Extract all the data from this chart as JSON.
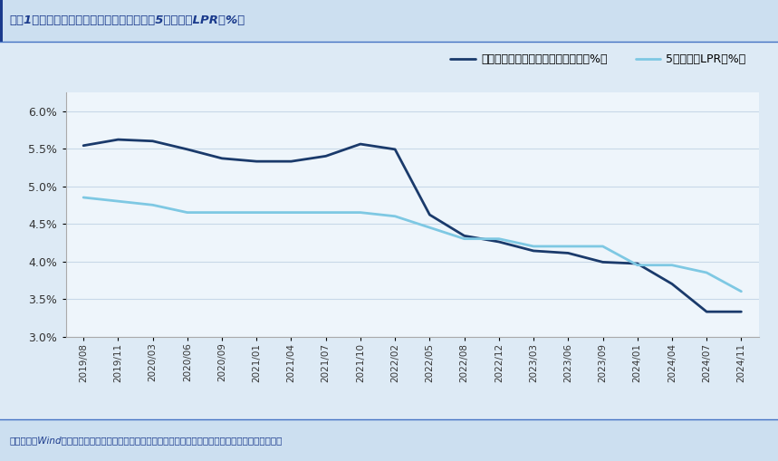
{
  "title": "图表1：新发放个人住房贷款加权平均利率与5年期以上LPR（%）",
  "footnote": "资料来源：Wind，央行，国盛证券研究所（个人住房贷款加权平均利率来自央行季度货币政策执行报告）",
  "legend1": "新发放个人住房贷款加权平均利率（%）",
  "legend2": "5年期以上LPR（%）",
  "color1": "#1a3a6b",
  "color2": "#7ec8e3",
  "bg_color": "#ddeaf5",
  "plot_bg": "#eef5fb",
  "title_bg": "#ccdff0",
  "foot_bg": "#ccdff0",
  "title_color": "#1a3a8c",
  "footnote_color": "#1a3a8c",
  "grid_color": "#c8d8e8",
  "spine_color": "#aaaaaa",
  "ylim": [
    3.0,
    6.25
  ],
  "yticks": [
    3.0,
    3.5,
    4.0,
    4.5,
    5.0,
    5.5,
    6.0
  ],
  "xtick_labels": [
    "2019/08",
    "2019/11",
    "2020/03",
    "2020/06",
    "2020/09",
    "2021/01",
    "2021/04",
    "2021/07",
    "2021/10",
    "2022/02",
    "2022/05",
    "2022/08",
    "2022/12",
    "2023/03",
    "2023/06",
    "2023/09",
    "2024/01",
    "2024/04",
    "2024/07",
    "2024/11"
  ],
  "series1_x": [
    0,
    1,
    2,
    3,
    4,
    5,
    6,
    7,
    8,
    9,
    10,
    11,
    12,
    13,
    14,
    15,
    16,
    17,
    18,
    19
  ],
  "series1_y": [
    5.54,
    5.62,
    5.6,
    5.49,
    5.37,
    5.33,
    5.33,
    5.4,
    5.56,
    5.49,
    4.62,
    4.34,
    4.26,
    4.14,
    4.11,
    3.99,
    3.97,
    3.7,
    3.33,
    3.33
  ],
  "series2_x": [
    0,
    1,
    2,
    3,
    4,
    5,
    6,
    7,
    8,
    9,
    10,
    11,
    12,
    13,
    14,
    15,
    16,
    17,
    18,
    19
  ],
  "series2_y": [
    4.85,
    4.8,
    4.75,
    4.65,
    4.65,
    4.65,
    4.65,
    4.65,
    4.65,
    4.6,
    4.45,
    4.3,
    4.3,
    4.2,
    4.2,
    4.2,
    3.95,
    3.95,
    3.85,
    3.6
  ]
}
